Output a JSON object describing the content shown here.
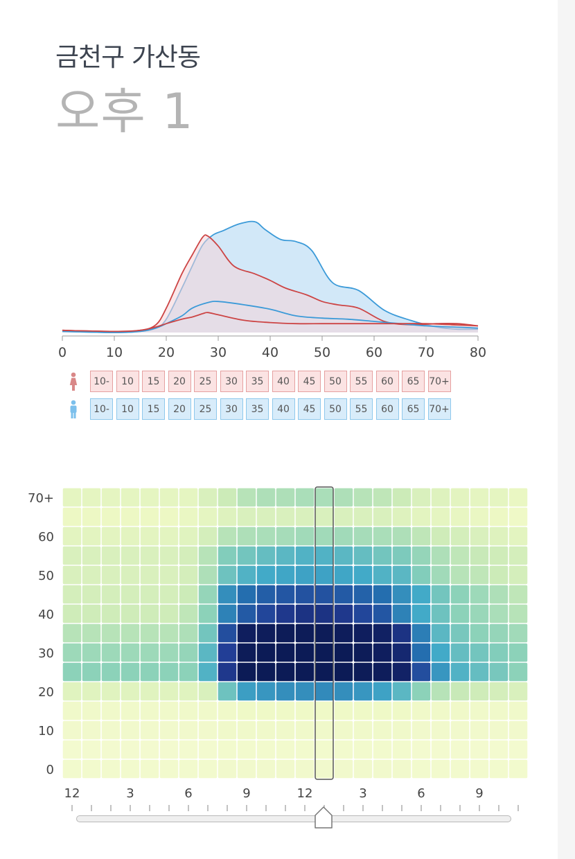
{
  "header": {
    "district": "금천구 가산동",
    "time_label": "오후 1"
  },
  "icons": {
    "female": "female-icon",
    "male": "male-icon",
    "slider_handle": "slider-handle-icon"
  },
  "colors": {
    "female_line": "#cc4444",
    "female_fill": "#f4d4d8",
    "male_line": "#3b9ad8",
    "male_fill": "#cde6f7",
    "axis": "#999999"
  },
  "age_buttons": {
    "female": [
      "10-",
      "10",
      "15",
      "20",
      "25",
      "30",
      "35",
      "40",
      "45",
      "50",
      "55",
      "60",
      "65",
      "70+"
    ],
    "male": [
      "10-",
      "10",
      "15",
      "20",
      "25",
      "30",
      "35",
      "40",
      "45",
      "50",
      "55",
      "60",
      "65",
      "70+"
    ]
  },
  "chart_data": [
    {
      "type": "area",
      "title": "",
      "xlabel": "",
      "ylabel": "",
      "xlim": [
        0,
        80
      ],
      "ylim": [
        0,
        1
      ],
      "xticks": [
        "0",
        "10",
        "20",
        "30",
        "40",
        "50",
        "60",
        "70",
        "80"
      ],
      "series": [
        {
          "name": "male-total",
          "x": [
            0,
            10,
            15,
            18,
            20,
            23,
            25,
            27,
            29,
            31,
            34,
            37,
            39,
            42,
            45,
            48,
            52,
            57,
            62,
            67,
            72,
            76,
            80
          ],
          "y": [
            0.01,
            0.0,
            0.01,
            0.04,
            0.12,
            0.4,
            0.6,
            0.79,
            0.88,
            0.92,
            0.98,
            1.0,
            0.93,
            0.84,
            0.82,
            0.74,
            0.45,
            0.38,
            0.2,
            0.11,
            0.05,
            0.03,
            0.03
          ]
        },
        {
          "name": "female-total",
          "x": [
            0,
            10,
            15,
            18,
            20,
            23,
            25,
            27,
            28,
            30,
            33,
            37,
            40,
            43,
            47,
            50,
            53,
            57,
            62,
            67,
            72,
            76,
            80
          ],
          "y": [
            0.02,
            0.01,
            0.02,
            0.07,
            0.22,
            0.53,
            0.7,
            0.86,
            0.87,
            0.78,
            0.6,
            0.53,
            0.47,
            0.4,
            0.34,
            0.28,
            0.25,
            0.22,
            0.1,
            0.07,
            0.08,
            0.08,
            0.06
          ]
        },
        {
          "name": "male-selected",
          "x": [
            0,
            10,
            15,
            18,
            20,
            23,
            25,
            28,
            30,
            35,
            40,
            45,
            50,
            55,
            60,
            65,
            70,
            75,
            80
          ],
          "y": [
            0.01,
            0.0,
            0.01,
            0.04,
            0.08,
            0.15,
            0.22,
            0.27,
            0.28,
            0.25,
            0.21,
            0.15,
            0.13,
            0.12,
            0.1,
            0.08,
            0.06,
            0.05,
            0.04
          ]
        },
        {
          "name": "female-selected",
          "x": [
            0,
            10,
            15,
            18,
            20,
            23,
            25,
            27,
            28,
            30,
            35,
            40,
            45,
            50,
            55,
            60,
            65,
            70,
            75,
            80
          ],
          "y": [
            0.02,
            0.01,
            0.02,
            0.05,
            0.08,
            0.12,
            0.14,
            0.17,
            0.18,
            0.16,
            0.11,
            0.09,
            0.08,
            0.08,
            0.08,
            0.08,
            0.08,
            0.08,
            0.07,
            0.06
          ]
        }
      ]
    },
    {
      "type": "heatmap",
      "title": "",
      "xlabel": "",
      "ylabel": "",
      "y_categories": [
        "0",
        "5",
        "10",
        "15",
        "20",
        "25",
        "30",
        "35",
        "40",
        "45",
        "50",
        "55",
        "60",
        "65",
        "70+"
      ],
      "y_tick_labels": [
        "0",
        "10",
        "20",
        "30",
        "40",
        "50",
        "60",
        "70+"
      ],
      "x_tick_labels": [
        "12",
        "3",
        "6",
        "9",
        "12",
        "3",
        "6",
        "9"
      ],
      "hours": [
        0,
        1,
        2,
        3,
        4,
        5,
        6,
        7,
        8,
        9,
        10,
        11,
        12,
        13,
        14,
        15,
        16,
        17,
        18,
        19,
        20,
        21,
        22,
        23
      ],
      "selected_hour": 13,
      "rows_top_to_bottom": [
        [
          0.15,
          0.15,
          0.15,
          0.15,
          0.15,
          0.15,
          0.15,
          0.2,
          0.25,
          0.3,
          0.32,
          0.32,
          0.33,
          0.33,
          0.32,
          0.3,
          0.28,
          0.25,
          0.2,
          0.18,
          0.16,
          0.15,
          0.15,
          0.13
        ],
        [
          0.12,
          0.12,
          0.12,
          0.12,
          0.12,
          0.12,
          0.13,
          0.15,
          0.18,
          0.2,
          0.2,
          0.2,
          0.2,
          0.2,
          0.2,
          0.2,
          0.2,
          0.18,
          0.16,
          0.15,
          0.14,
          0.13,
          0.12,
          0.1
        ],
        [
          0.16,
          0.16,
          0.16,
          0.16,
          0.16,
          0.16,
          0.17,
          0.22,
          0.3,
          0.32,
          0.33,
          0.34,
          0.35,
          0.35,
          0.35,
          0.34,
          0.33,
          0.32,
          0.28,
          0.24,
          0.22,
          0.2,
          0.18,
          0.16
        ],
        [
          0.2,
          0.2,
          0.2,
          0.2,
          0.2,
          0.2,
          0.22,
          0.3,
          0.42,
          0.45,
          0.48,
          0.5,
          0.52,
          0.52,
          0.5,
          0.48,
          0.45,
          0.43,
          0.38,
          0.32,
          0.28,
          0.26,
          0.24,
          0.22
        ],
        [
          0.2,
          0.2,
          0.2,
          0.2,
          0.2,
          0.2,
          0.22,
          0.32,
          0.46,
          0.52,
          0.55,
          0.56,
          0.57,
          0.57,
          0.56,
          0.55,
          0.52,
          0.5,
          0.42,
          0.35,
          0.3,
          0.28,
          0.25,
          0.22
        ],
        [
          0.22,
          0.22,
          0.22,
          0.22,
          0.22,
          0.22,
          0.25,
          0.38,
          0.62,
          0.7,
          0.74,
          0.76,
          0.77,
          0.77,
          0.75,
          0.73,
          0.7,
          0.62,
          0.55,
          0.45,
          0.4,
          0.36,
          0.32,
          0.28
        ],
        [
          0.24,
          0.24,
          0.24,
          0.24,
          0.24,
          0.24,
          0.28,
          0.4,
          0.65,
          0.75,
          0.8,
          0.84,
          0.86,
          0.86,
          0.84,
          0.8,
          0.76,
          0.65,
          0.55,
          0.46,
          0.4,
          0.37,
          0.33,
          0.3
        ],
        [
          0.3,
          0.3,
          0.3,
          0.3,
          0.3,
          0.3,
          0.32,
          0.45,
          0.78,
          0.95,
          0.96,
          0.97,
          0.97,
          0.97,
          0.96,
          0.95,
          0.93,
          0.86,
          0.66,
          0.5,
          0.44,
          0.4,
          0.38,
          0.35
        ],
        [
          0.36,
          0.36,
          0.36,
          0.36,
          0.36,
          0.36,
          0.38,
          0.5,
          0.82,
          0.97,
          0.98,
          0.98,
          0.98,
          0.98,
          0.98,
          0.97,
          0.95,
          0.9,
          0.7,
          0.55,
          0.48,
          0.45,
          0.42,
          0.4
        ],
        [
          0.4,
          0.4,
          0.4,
          0.4,
          0.4,
          0.4,
          0.4,
          0.52,
          0.84,
          0.98,
          0.98,
          0.98,
          0.98,
          0.98,
          0.98,
          0.97,
          0.96,
          0.92,
          0.78,
          0.6,
          0.52,
          0.48,
          0.44,
          0.4
        ],
        [
          0.17,
          0.17,
          0.17,
          0.17,
          0.17,
          0.17,
          0.17,
          0.2,
          0.46,
          0.58,
          0.6,
          0.62,
          0.62,
          0.63,
          0.62,
          0.6,
          0.57,
          0.5,
          0.4,
          0.3,
          0.26,
          0.24,
          0.22,
          0.2
        ],
        [
          0.08,
          0.08,
          0.08,
          0.08,
          0.08,
          0.08,
          0.08,
          0.08,
          0.09,
          0.1,
          0.1,
          0.1,
          0.1,
          0.1,
          0.1,
          0.1,
          0.1,
          0.1,
          0.09,
          0.09,
          0.09,
          0.08,
          0.08,
          0.08
        ],
        [
          0.07,
          0.07,
          0.07,
          0.07,
          0.07,
          0.07,
          0.07,
          0.07,
          0.08,
          0.08,
          0.08,
          0.08,
          0.08,
          0.08,
          0.08,
          0.08,
          0.08,
          0.08,
          0.07,
          0.07,
          0.07,
          0.07,
          0.07,
          0.07
        ],
        [
          0.05,
          0.05,
          0.05,
          0.05,
          0.05,
          0.05,
          0.05,
          0.05,
          0.06,
          0.06,
          0.06,
          0.06,
          0.06,
          0.06,
          0.06,
          0.06,
          0.06,
          0.06,
          0.05,
          0.05,
          0.05,
          0.05,
          0.05,
          0.05
        ],
        [
          0.06,
          0.06,
          0.06,
          0.06,
          0.06,
          0.06,
          0.06,
          0.06,
          0.07,
          0.07,
          0.07,
          0.07,
          0.07,
          0.07,
          0.07,
          0.07,
          0.07,
          0.07,
          0.06,
          0.06,
          0.06,
          0.06,
          0.06,
          0.06
        ]
      ]
    }
  ]
}
